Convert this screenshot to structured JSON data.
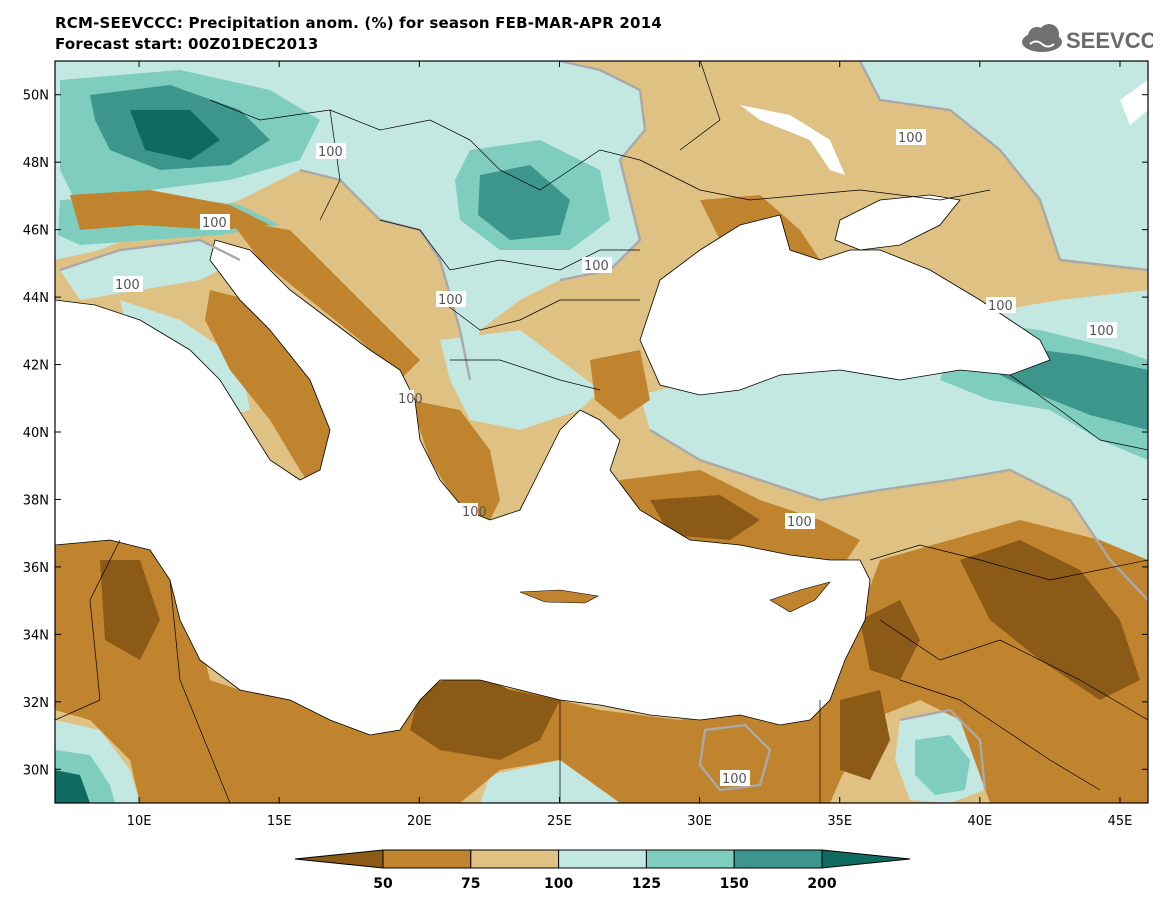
{
  "header": {
    "title_line1": "RCM-SEEVCCC: Precipitation anom. (%) for season FEB-MAR-APR 2014",
    "title_line2": "Forecast start: 00Z01DEC2013",
    "logo_text": "SEEVCCC",
    "logo_icon": "cloud-icon"
  },
  "map": {
    "lon_range": [
      7,
      46
    ],
    "lat_range": [
      29,
      51
    ],
    "lat_ticks": [
      "30N",
      "32N",
      "34N",
      "36N",
      "38N",
      "40N",
      "42N",
      "44N",
      "46N",
      "48N",
      "50N"
    ],
    "lon_ticks": [
      "10E",
      "15E",
      "20E",
      "25E",
      "30E",
      "35E",
      "40E",
      "45E"
    ],
    "contour_labels": [
      "100",
      "100",
      "100",
      "100",
      "100",
      "100",
      "100",
      "100",
      "100",
      "100",
      "100",
      "100"
    ]
  },
  "colorbar": {
    "labels": [
      "50",
      "75",
      "100",
      "125",
      "150",
      "200"
    ],
    "colors": [
      "#8b5a16",
      "#c1842e",
      "#dfc183",
      "#c3e8e2",
      "#7fcdbf",
      "#3c968b",
      "#0f6b5f"
    ]
  }
}
